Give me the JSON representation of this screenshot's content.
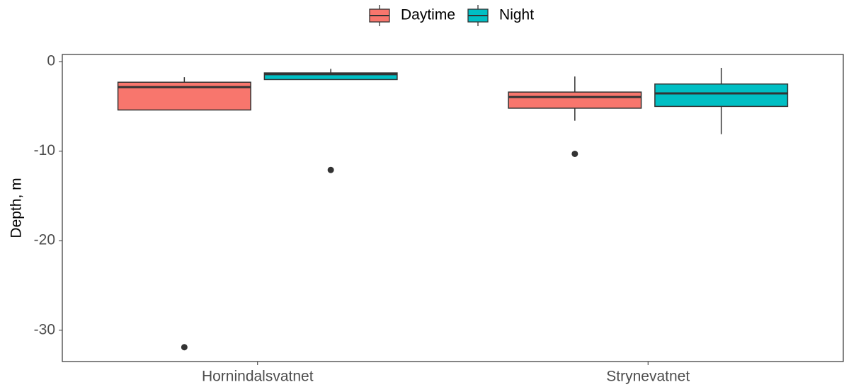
{
  "chart_data": {
    "type": "box",
    "y_label": "Depth, m",
    "categories": [
      "Hornindalsvatnet",
      "Strynevatnet"
    ],
    "series": [
      {
        "name": "Daytime",
        "color": "#f8766d",
        "values": [
          {
            "whislo": -5.4,
            "q1": -5.4,
            "med": -2.85,
            "q3": -2.3,
            "whishi": -1.74,
            "outliers": [
              -31.9
            ]
          },
          {
            "whislo": -6.6,
            "q1": -5.2,
            "med": -3.95,
            "q3": -3.4,
            "whishi": -1.66,
            "outliers": [
              -10.3
            ]
          }
        ]
      },
      {
        "name": "Night",
        "color": "#00bfc4",
        "values": [
          {
            "whislo": -2.0,
            "q1": -2.0,
            "med": -1.4,
            "q3": -1.26,
            "whishi": -0.8,
            "outliers": [
              -12.1
            ]
          },
          {
            "whislo": -8.1,
            "q1": -5.0,
            "med": -3.55,
            "q3": -2.5,
            "whishi": -0.7,
            "outliers": []
          }
        ]
      }
    ],
    "ylim": [
      -33.5,
      0.8
    ],
    "yticks": [
      0,
      -10,
      -20,
      -30
    ],
    "grid": false,
    "legend_position": "top"
  }
}
